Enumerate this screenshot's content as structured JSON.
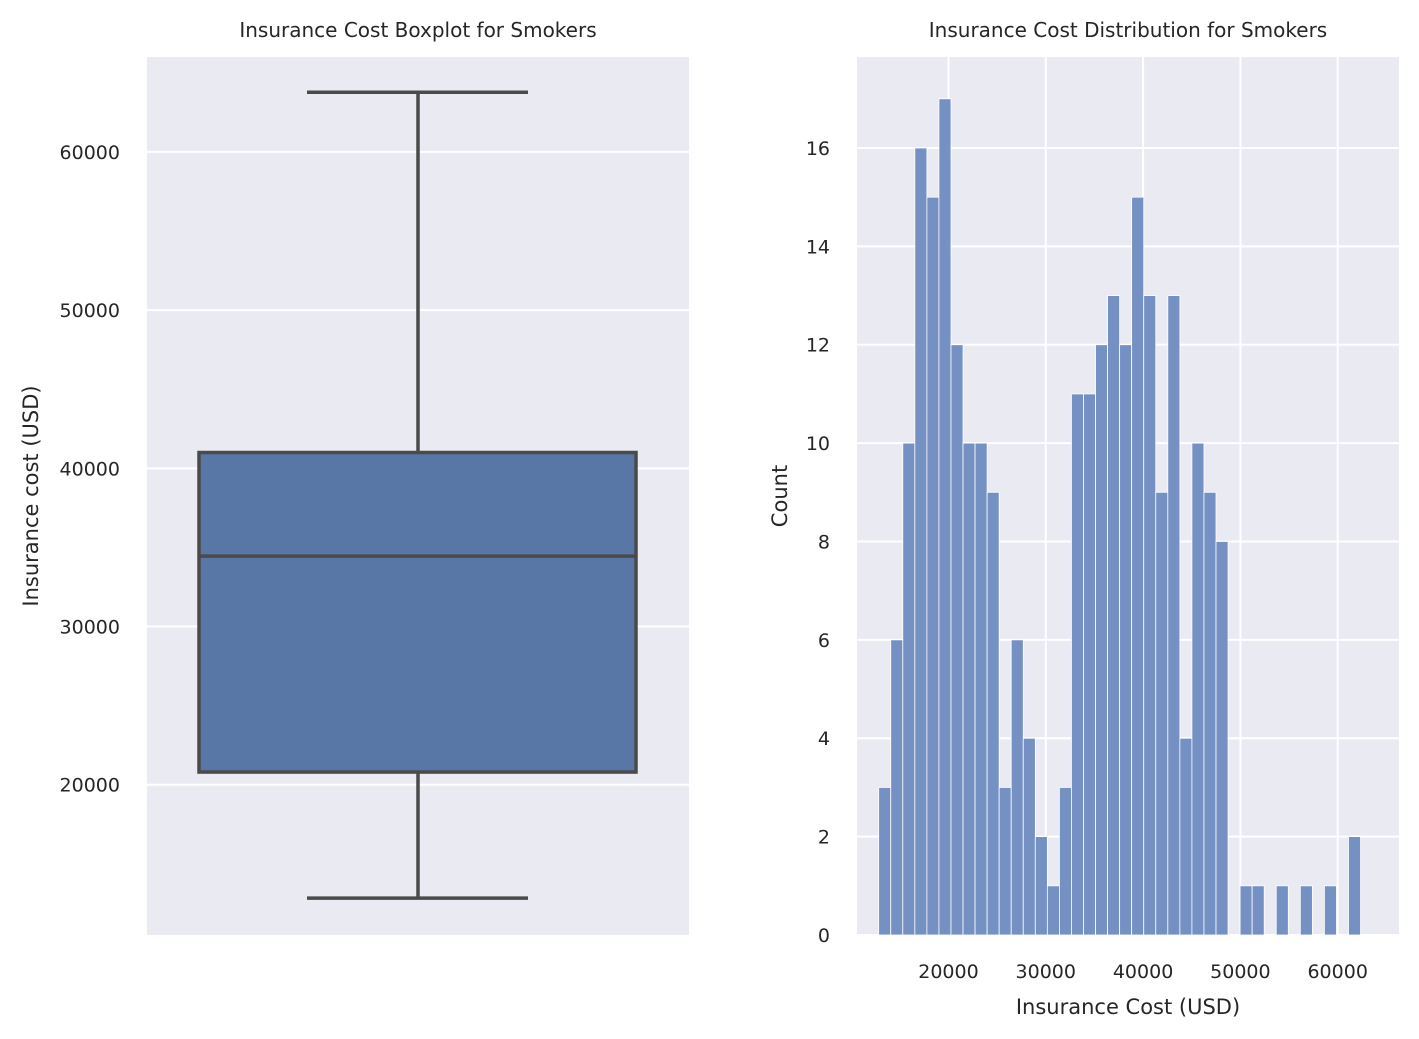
{
  "colors": {
    "panel_background": "#eaeaf2",
    "grid": "#ffffff",
    "box_fill": "#5876a6",
    "box_line": "#4a4a4a",
    "hist_fill": "#7590c2",
    "text": "#262626"
  },
  "chart_data": [
    {
      "type": "box",
      "title": "Insurance Cost Boxplot for Smokers",
      "xlabel": "",
      "ylabel": "Insurance cost (USD)",
      "ylim": [
        10500,
        66000
      ],
      "yticks": [
        20000,
        30000,
        40000,
        50000,
        60000
      ],
      "grid": true,
      "stats": {
        "whisker_low": 12830,
        "q1": 20800,
        "median": 34450,
        "q3": 41000,
        "whisker_high": 63770
      }
    },
    {
      "type": "bar",
      "subtype": "histogram",
      "title": "Insurance Cost Distribution for Smokers",
      "xlabel": "Insurance Cost (USD)",
      "ylabel": "Count",
      "xlim": [
        10600,
        66300
      ],
      "ylim": [
        0,
        17.85
      ],
      "xticks": [
        20000,
        30000,
        40000,
        50000,
        60000
      ],
      "yticks": [
        0,
        2,
        4,
        6,
        8,
        10,
        12,
        14,
        16
      ],
      "grid": true,
      "bin_start": 12830,
      "bin_width": 1238,
      "counts": [
        3,
        6,
        10,
        16,
        15,
        17,
        12,
        10,
        10,
        9,
        3,
        6,
        4,
        2,
        1,
        3,
        11,
        11,
        12,
        13,
        12,
        15,
        13,
        9,
        13,
        4,
        10,
        9,
        8,
        0,
        1,
        1,
        0,
        1,
        0,
        1,
        0,
        1,
        0,
        2
      ]
    }
  ]
}
